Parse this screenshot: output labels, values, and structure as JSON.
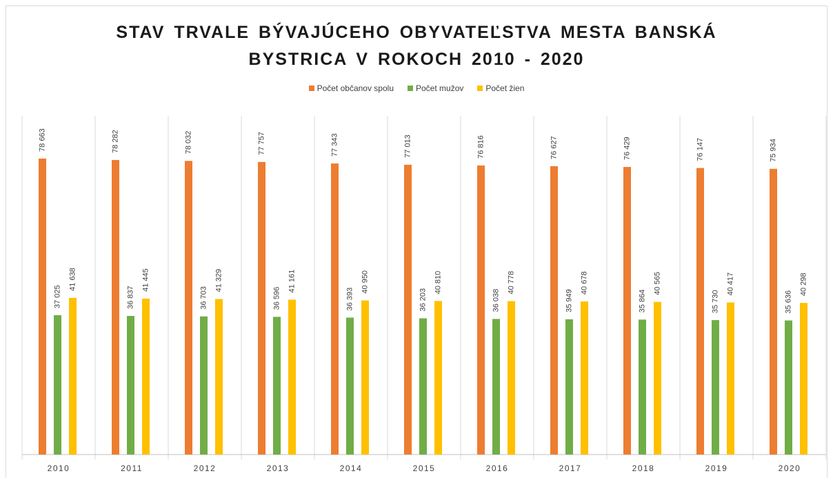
{
  "chart_data": {
    "type": "bar",
    "title": "STAV TRVALE BÝVAJÚCEHO OBYVATEĽSTVA MESTA BANSKÁ BYSTRICA V ROKOCH 2010 - 2020",
    "categories": [
      "2010",
      "2011",
      "2012",
      "2013",
      "2014",
      "2015",
      "2016",
      "2017",
      "2018",
      "2019",
      "2020"
    ],
    "series": [
      {
        "name": "Počet občanov spolu",
        "color": "#ED7D31",
        "values": [
          78663,
          78282,
          78032,
          77757,
          77343,
          77013,
          76816,
          76627,
          76429,
          76147,
          75934
        ],
        "value_labels": [
          "78 663",
          "78 282",
          "78 032",
          "77 757",
          "77 343",
          "77 013",
          "76 816",
          "76 627",
          "76 429",
          "76 147",
          "75 934"
        ]
      },
      {
        "name": "Počet mužov",
        "color": "#70AD47",
        "values": [
          37025,
          36837,
          36703,
          36596,
          36393,
          36203,
          36038,
          35949,
          35864,
          35730,
          35636
        ],
        "value_labels": [
          "37 025",
          "36 837",
          "36 703",
          "36 596",
          "36 393",
          "36 203",
          "36 038",
          "35 949",
          "35 864",
          "35 730",
          "35 636"
        ]
      },
      {
        "name": "Počet žien",
        "color": "#FFC000",
        "values": [
          41638,
          41445,
          41329,
          41161,
          40950,
          40810,
          40778,
          40678,
          40565,
          40417,
          40298
        ],
        "value_labels": [
          "41 638",
          "41 445",
          "41 329",
          "41 161",
          "40 950",
          "40 810",
          "40 778",
          "40 678",
          "40 565",
          "40 417",
          "40 298"
        ]
      }
    ],
    "ylim": [
      0,
      90000
    ],
    "legend": "top"
  }
}
